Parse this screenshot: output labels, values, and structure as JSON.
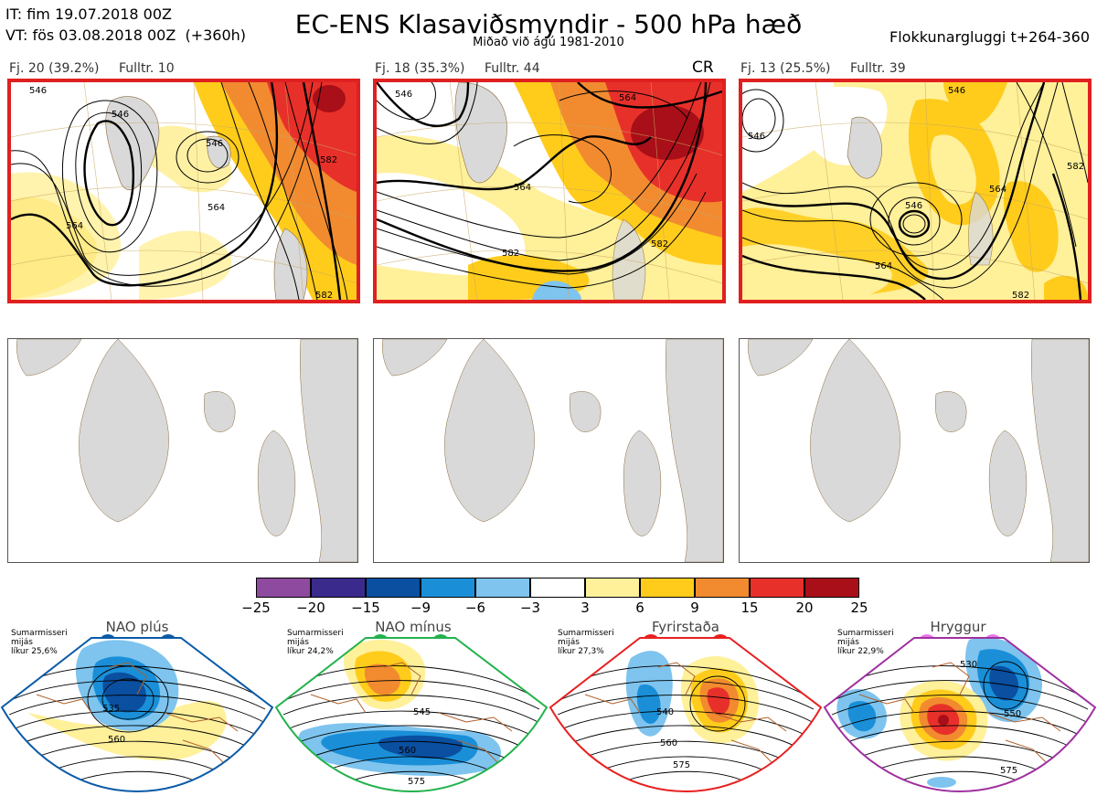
{
  "header": {
    "it_line": "IT: fim 19.07.2018 00Z",
    "vt_line": "VT: fös 03.08.2018 00Z  (+360h)",
    "title": "EC-ENS Klasaviðsmyndir - 500 hPa hæð",
    "subtitle": "Miðað við ágú 1981-2010",
    "window": "Flokkunargluggi t+264-360"
  },
  "clusters": [
    {
      "label": "Fj. 20 (39.2%)",
      "rep": "Fulltr. 10",
      "tag": "",
      "contours": [
        "546",
        "564",
        "546",
        "564",
        "582",
        "582",
        "564"
      ]
    },
    {
      "label": "Fj. 18 (35.3%)",
      "rep": "Fulltr. 44",
      "tag": "CR",
      "contours": [
        "564",
        "546",
        "564",
        "582",
        "582"
      ]
    },
    {
      "label": "Fj. 13 (25.5%)",
      "rep": "Fulltr. 39",
      "tag": "",
      "contours": [
        "546",
        "546",
        "546",
        "564",
        "582",
        "564",
        "582"
      ]
    }
  ],
  "colorbar": {
    "ticks": [
      "−25",
      "−20",
      "−15",
      "−9",
      "−6",
      "−3",
      "3",
      "6",
      "9",
      "15",
      "20",
      "25"
    ],
    "colors": [
      "#8e4a9e",
      "#3a2a8c",
      "#0a4fa0",
      "#1a8fd8",
      "#7ec4ee",
      "#ffffff",
      "#fff09a",
      "#ffcc1c",
      "#f28b30",
      "#e8302a",
      "#a80f18"
    ]
  },
  "regimes": [
    {
      "name": "NAO plús",
      "text": [
        "Sumarmisseri",
        "mijás",
        "líkur 25,6%"
      ],
      "color": "#0a5aa8",
      "contours": [
        "535",
        "560"
      ]
    },
    {
      "name": "NAO mínus",
      "text": [
        "Sumarmisseri",
        "mijás",
        "líkur 24,2%"
      ],
      "color": "#22b24c",
      "contours": [
        "545",
        "560",
        "575"
      ]
    },
    {
      "name": "Fyrirstaða",
      "text": [
        "Sumarmisseri",
        "mijás",
        "líkur 27,3%"
      ],
      "color": "#e82020",
      "contours": [
        "540",
        "560",
        "575"
      ]
    },
    {
      "name": "Hryggur",
      "text": [
        "Sumarmisseri",
        "mijás",
        "líkur 22,9%"
      ],
      "color": "#e879e8",
      "contours": [
        "530",
        "550",
        "575"
      ]
    }
  ],
  "icons": {
    "land": "land-mass",
    "regime-marker": "circle-marker"
  }
}
